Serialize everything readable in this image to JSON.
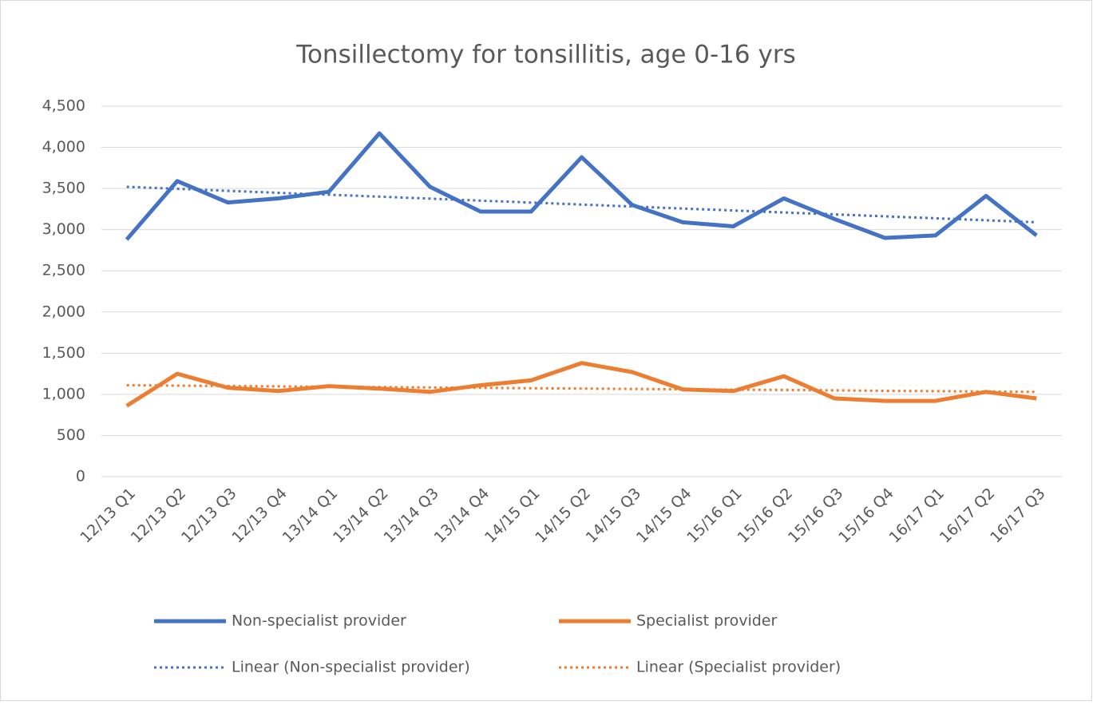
{
  "chart_data": {
    "type": "line",
    "title": "Tonsillectomy for tonsillitis, age 0-16 yrs",
    "categories": [
      "12/13 Q1",
      "12/13 Q2",
      "12/13 Q3",
      "12/13 Q4",
      "13/14 Q1",
      "13/14 Q2",
      "13/14 Q3",
      "13/14 Q4",
      "14/15 Q1",
      "14/15 Q2",
      "14/15 Q3",
      "14/15 Q4",
      "15/16 Q1",
      "15/16 Q2",
      "15/16 Q3",
      "15/16 Q4",
      "16/17 Q1",
      "16/17 Q2",
      "16/17 Q3"
    ],
    "series": [
      {
        "name": "Non-specialist provider",
        "color": "#4472c4",
        "style": "solid",
        "values": [
          2880,
          3590,
          3330,
          3380,
          3460,
          4170,
          3520,
          3220,
          3220,
          3880,
          3300,
          3090,
          3040,
          3380,
          3130,
          2900,
          2930,
          3410,
          2930
        ]
      },
      {
        "name": "Specialist provider",
        "color": "#ed7d31",
        "style": "solid",
        "values": [
          860,
          1250,
          1080,
          1040,
          1100,
          1070,
          1030,
          1110,
          1170,
          1380,
          1270,
          1060,
          1040,
          1220,
          950,
          920,
          920,
          1030,
          950
        ]
      },
      {
        "name": "Linear (Non-specialist provider)",
        "color": "#4472c4",
        "style": "dotted",
        "values": [
          3520,
          3496,
          3472,
          3448,
          3424,
          3401,
          3377,
          3353,
          3329,
          3305,
          3281,
          3257,
          3233,
          3209,
          3186,
          3162,
          3138,
          3114,
          3090
        ]
      },
      {
        "name": "Linear (Specialist provider)",
        "color": "#ed7d31",
        "style": "dotted",
        "values": [
          1110,
          1106,
          1101,
          1097,
          1092,
          1088,
          1083,
          1079,
          1074,
          1070,
          1066,
          1061,
          1057,
          1052,
          1048,
          1043,
          1039,
          1034,
          1030
        ]
      }
    ],
    "ylim": [
      0,
      4500
    ],
    "yticks": [
      0,
      500,
      {
        "value": 1000,
        "label": "1,000"
      },
      {
        "value": 1500,
        "label": "1,500"
      },
      {
        "value": 2000,
        "label": "2,000"
      },
      {
        "value": 2500,
        "label": "2,500"
      },
      {
        "value": 3000,
        "label": "3,000"
      },
      {
        "value": 3500,
        "label": "3,500"
      },
      {
        "value": 4000,
        "label": "4,000"
      },
      {
        "value": 4500,
        "label": "4,500"
      }
    ],
    "grid": true,
    "legend": "bottom"
  }
}
